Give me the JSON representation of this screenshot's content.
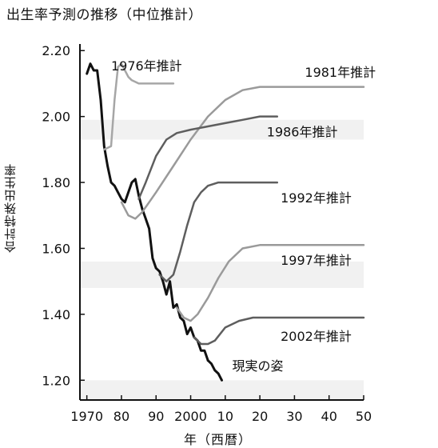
{
  "chart_data": {
    "type": "line",
    "title": "出生率予測の推移（中位推計）",
    "ylabel": "合計特殊出生率",
    "xlabel": "年（西暦）",
    "xlim": [
      1968,
      2050
    ],
    "ylim": [
      1.14,
      2.22
    ],
    "x_ticks": [
      1970,
      1980,
      1990,
      2000,
      2010,
      2020,
      2030,
      2040,
      2050
    ],
    "x_tick_labels": [
      "1970",
      "80",
      "90",
      "2000",
      "10",
      "20",
      "30",
      "40",
      "50"
    ],
    "y_ticks": [
      1.2,
      1.4,
      1.6,
      1.8,
      2.0,
      2.2
    ],
    "y_tick_labels": [
      "1.20",
      "1.40",
      "1.60",
      "1.80",
      "2.00",
      "2.20"
    ],
    "grid": false,
    "series": [
      {
        "name": "現実の姿",
        "color": "#111111",
        "width": 3,
        "x": [
          1970,
          1971,
          1972,
          1973,
          1974,
          1975,
          1976,
          1977,
          1978,
          1979,
          1980,
          1981,
          1982,
          1983,
          1984,
          1985,
          1986,
          1987,
          1988,
          1989,
          1990,
          1991,
          1992,
          1993,
          1994,
          1995,
          1996,
          1997,
          1998,
          1999,
          2000,
          2001,
          2002,
          2003,
          2004,
          2005
        ],
        "values": [
          2.13,
          2.16,
          2.14,
          2.14,
          2.05,
          1.91,
          1.85,
          1.8,
          1.79,
          1.77,
          1.75,
          1.74,
          1.77,
          1.8,
          1.81,
          1.76,
          1.72,
          1.69,
          1.66,
          1.57,
          1.54,
          1.53,
          1.5,
          1.46,
          1.5,
          1.42,
          1.43,
          1.39,
          1.38,
          1.34,
          1.36,
          1.33,
          1.32,
          1.29,
          1.29,
          1.26
        ]
      },
      {
        "name": "現実の姿（延長）",
        "color": "#111111",
        "width": 3,
        "x": [
          2005,
          2006,
          2007,
          2008,
          2009
        ],
        "values": [
          1.26,
          1.25,
          1.23,
          1.22,
          1.2
        ]
      },
      {
        "name": "1976年推計",
        "color": "#a6a6a6",
        "width": 2.5,
        "x": [
          1975,
          1977,
          1978,
          1979,
          1980,
          1981,
          1982,
          1983,
          1985,
          1987,
          1990,
          1995
        ],
        "values": [
          1.9,
          1.91,
          2.05,
          2.15,
          2.16,
          2.14,
          2.12,
          2.11,
          2.1,
          2.1,
          2.1,
          2.1
        ]
      },
      {
        "name": "1981年推計",
        "color": "#9a9a9a",
        "width": 2.5,
        "x": [
          1980,
          1982,
          1984,
          1986,
          1988,
          1990,
          1995,
          2000,
          2005,
          2010,
          2015,
          2020,
          2025,
          2030,
          2040,
          2050
        ],
        "values": [
          1.74,
          1.7,
          1.69,
          1.71,
          1.74,
          1.77,
          1.85,
          1.93,
          2.0,
          2.05,
          2.08,
          2.09,
          2.09,
          2.09,
          2.09,
          2.09
        ]
      },
      {
        "name": "1986年推計",
        "color": "#5e5e5e",
        "width": 2.5,
        "x": [
          1985,
          1987,
          1990,
          1993,
          1996,
          2000,
          2005,
          2010,
          2015,
          2020,
          2025
        ],
        "values": [
          1.75,
          1.8,
          1.88,
          1.93,
          1.95,
          1.96,
          1.97,
          1.98,
          1.99,
          2.0,
          2.0
        ]
      },
      {
        "name": "1992年推計",
        "color": "#5e5e5e",
        "width": 2.5,
        "x": [
          1991,
          1993,
          1995,
          1997,
          1999,
          2001,
          2003,
          2005,
          2008,
          2012,
          2016,
          2020,
          2025
        ],
        "values": [
          1.52,
          1.5,
          1.52,
          1.59,
          1.67,
          1.74,
          1.77,
          1.79,
          1.8,
          1.8,
          1.8,
          1.8,
          1.8
        ]
      },
      {
        "name": "1997年推計",
        "color": "#9a9a9a",
        "width": 2.5,
        "x": [
          1996,
          1998,
          2000,
          2002,
          2005,
          2008,
          2011,
          2015,
          2020,
          2025,
          2030,
          2040,
          2050
        ],
        "values": [
          1.42,
          1.39,
          1.38,
          1.4,
          1.45,
          1.51,
          1.56,
          1.6,
          1.61,
          1.61,
          1.61,
          1.61,
          1.61
        ]
      },
      {
        "name": "2002年推計",
        "color": "#5e5e5e",
        "width": 2.5,
        "x": [
          2001,
          2003,
          2005,
          2007,
          2010,
          2014,
          2018,
          2025,
          2030,
          2040,
          2050
        ],
        "values": [
          1.33,
          1.31,
          1.31,
          1.32,
          1.36,
          1.38,
          1.39,
          1.39,
          1.39,
          1.39,
          1.39
        ]
      }
    ],
    "annotations": [
      {
        "text": "1976年推計",
        "x": 1977,
        "y": 2.14
      },
      {
        "text": "1981年推計",
        "x": 2033,
        "y": 2.12
      },
      {
        "text": "1986年推計",
        "x": 2022,
        "y": 1.94
      },
      {
        "text": "1992年推計",
        "x": 2026,
        "y": 1.74
      },
      {
        "text": "1997年推計",
        "x": 2026,
        "y": 1.55
      },
      {
        "text": "2002年推計",
        "x": 2026,
        "y": 1.32
      },
      {
        "text": "現実の姿",
        "x": 2012,
        "y": 1.23
      }
    ]
  }
}
